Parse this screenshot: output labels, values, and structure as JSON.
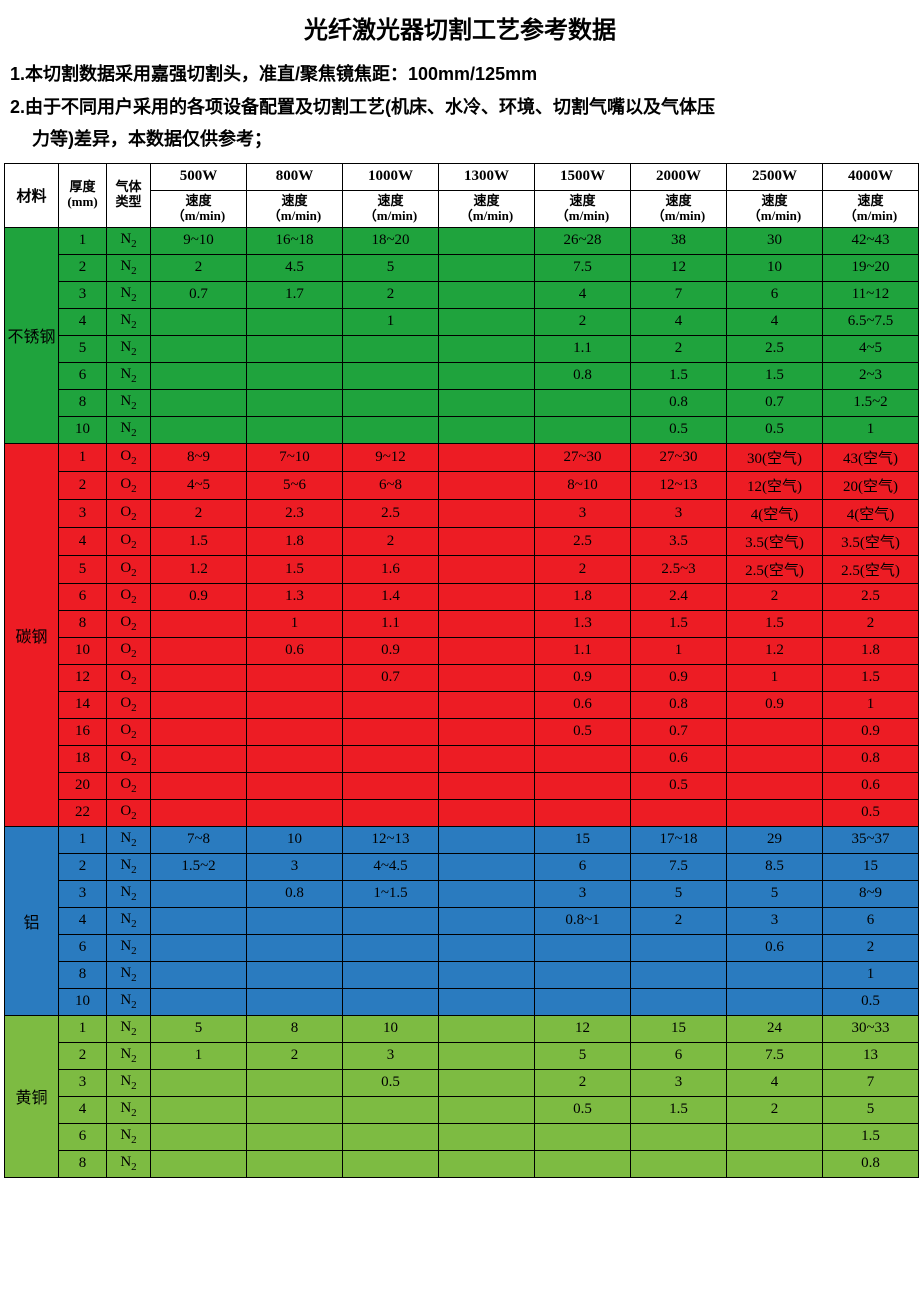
{
  "title": "光纤激光器切割工艺参考数据",
  "notes": [
    "1.本切割数据采用嘉强切割头，准直/聚焦镜焦距：100mm/125mm",
    "2.由于不同用户采用的各项设备配置及切割工艺(机床、水冷、环境、切割气嘴以及气体压",
    "力等)差异，本数据仅供参考；"
  ],
  "header": {
    "material": "材料",
    "thickness": "厚度\n(mm)",
    "gas": "气体\n类型",
    "power_labels": [
      "500W",
      "800W",
      "1000W",
      "1300W",
      "1500W",
      "2000W",
      "2500W",
      "4000W"
    ],
    "speed_label": "速度\n（m/min)"
  },
  "colors": {
    "stainless": "#1fa33d",
    "carbon": "#ed1c24",
    "aluminum": "#2a7bbf",
    "brass": "#7dbb42",
    "border": "#000000",
    "white": "#ffffff"
  },
  "materials": [
    {
      "name": "不锈钢",
      "color": "#1fa33d",
      "gas": "N",
      "rows": [
        {
          "t": "1",
          "v": [
            "9~10",
            "16~18",
            "18~20",
            "",
            "26~28",
            "38",
            "30",
            "42~43"
          ]
        },
        {
          "t": "2",
          "v": [
            "2",
            "4.5",
            "5",
            "",
            "7.5",
            "12",
            "10",
            "19~20"
          ]
        },
        {
          "t": "3",
          "v": [
            "0.7",
            "1.7",
            "2",
            "",
            "4",
            "7",
            "6",
            "11~12"
          ]
        },
        {
          "t": "4",
          "v": [
            "",
            "",
            "1",
            "",
            "2",
            "4",
            "4",
            "6.5~7.5"
          ]
        },
        {
          "t": "5",
          "v": [
            "",
            "",
            "",
            "",
            "1.1",
            "2",
            "2.5",
            "4~5"
          ]
        },
        {
          "t": "6",
          "v": [
            "",
            "",
            "",
            "",
            "0.8",
            "1.5",
            "1.5",
            "2~3"
          ]
        },
        {
          "t": "8",
          "v": [
            "",
            "",
            "",
            "",
            "",
            "0.8",
            "0.7",
            "1.5~2"
          ]
        },
        {
          "t": "10",
          "v": [
            "",
            "",
            "",
            "",
            "",
            "0.5",
            "0.5",
            "1"
          ]
        }
      ]
    },
    {
      "name": "碳钢",
      "color": "#ed1c24",
      "gas": "O",
      "rows": [
        {
          "t": "1",
          "v": [
            "8~9",
            "7~10",
            "9~12",
            "",
            "27~30",
            "27~30",
            "30(空气)",
            "43(空气)"
          ]
        },
        {
          "t": "2",
          "v": [
            "4~5",
            "5~6",
            "6~8",
            "",
            "8~10",
            "12~13",
            "12(空气)",
            "20(空气)"
          ]
        },
        {
          "t": "3",
          "v": [
            "2",
            "2.3",
            "2.5",
            "",
            "3",
            "3",
            "4(空气)",
            "4(空气)"
          ]
        },
        {
          "t": "4",
          "v": [
            "1.5",
            "1.8",
            "2",
            "",
            "2.5",
            "3.5",
            "3.5(空气)",
            "3.5(空气)"
          ]
        },
        {
          "t": "5",
          "v": [
            "1.2",
            "1.5",
            "1.6",
            "",
            "2",
            "2.5~3",
            "2.5(空气)",
            "2.5(空气)"
          ]
        },
        {
          "t": "6",
          "v": [
            "0.9",
            "1.3",
            "1.4",
            "",
            "1.8",
            "2.4",
            "2",
            "2.5"
          ]
        },
        {
          "t": "8",
          "v": [
            "",
            "1",
            "1.1",
            "",
            "1.3",
            "1.5",
            "1.5",
            "2"
          ]
        },
        {
          "t": "10",
          "v": [
            "",
            "0.6",
            "0.9",
            "",
            "1.1",
            "1",
            "1.2",
            "1.8"
          ]
        },
        {
          "t": "12",
          "v": [
            "",
            "",
            "0.7",
            "",
            "0.9",
            "0.9",
            "1",
            "1.5"
          ]
        },
        {
          "t": "14",
          "v": [
            "",
            "",
            "",
            "",
            "0.6",
            "0.8",
            "0.9",
            "1"
          ]
        },
        {
          "t": "16",
          "v": [
            "",
            "",
            "",
            "",
            "0.5",
            "0.7",
            "",
            "0.9"
          ]
        },
        {
          "t": "18",
          "v": [
            "",
            "",
            "",
            "",
            "",
            "0.6",
            "",
            "0.8"
          ]
        },
        {
          "t": "20",
          "v": [
            "",
            "",
            "",
            "",
            "",
            "0.5",
            "",
            "0.6"
          ]
        },
        {
          "t": "22",
          "v": [
            "",
            "",
            "",
            "",
            "",
            "",
            "",
            "0.5"
          ]
        }
      ]
    },
    {
      "name": "铝",
      "color": "#2a7bbf",
      "gas": "N",
      "rows": [
        {
          "t": "1",
          "v": [
            "7~8",
            "10",
            "12~13",
            "",
            "15",
            "17~18",
            "29",
            "35~37"
          ]
        },
        {
          "t": "2",
          "v": [
            "1.5~2",
            "3",
            "4~4.5",
            "",
            "6",
            "7.5",
            "8.5",
            "15"
          ]
        },
        {
          "t": "3",
          "v": [
            "",
            "0.8",
            "1~1.5",
            "",
            "3",
            "5",
            "5",
            "8~9"
          ]
        },
        {
          "t": "4",
          "v": [
            "",
            "",
            "",
            "",
            "0.8~1",
            "2",
            "3",
            "6"
          ]
        },
        {
          "t": "6",
          "v": [
            "",
            "",
            "",
            "",
            "",
            "",
            "0.6",
            "2"
          ]
        },
        {
          "t": "8",
          "v": [
            "",
            "",
            "",
            "",
            "",
            "",
            "",
            "1"
          ]
        },
        {
          "t": "10",
          "v": [
            "",
            "",
            "",
            "",
            "",
            "",
            "",
            "0.5"
          ]
        }
      ]
    },
    {
      "name": "黄铜",
      "color": "#7dbb42",
      "gas": "N",
      "rows": [
        {
          "t": "1",
          "v": [
            "5",
            "8",
            "10",
            "",
            "12",
            "15",
            "24",
            "30~33"
          ]
        },
        {
          "t": "2",
          "v": [
            "1",
            "2",
            "3",
            "",
            "5",
            "6",
            "7.5",
            "13"
          ]
        },
        {
          "t": "3",
          "v": [
            "",
            "",
            "0.5",
            "",
            "2",
            "3",
            "4",
            "7"
          ]
        },
        {
          "t": "4",
          "v": [
            "",
            "",
            "",
            "",
            "0.5",
            "1.5",
            "2",
            "5"
          ]
        },
        {
          "t": "6",
          "v": [
            "",
            "",
            "",
            "",
            "",
            "",
            "",
            "1.5"
          ]
        },
        {
          "t": "8",
          "v": [
            "",
            "",
            "",
            "",
            "",
            "",
            "",
            "0.8"
          ]
        }
      ]
    }
  ]
}
